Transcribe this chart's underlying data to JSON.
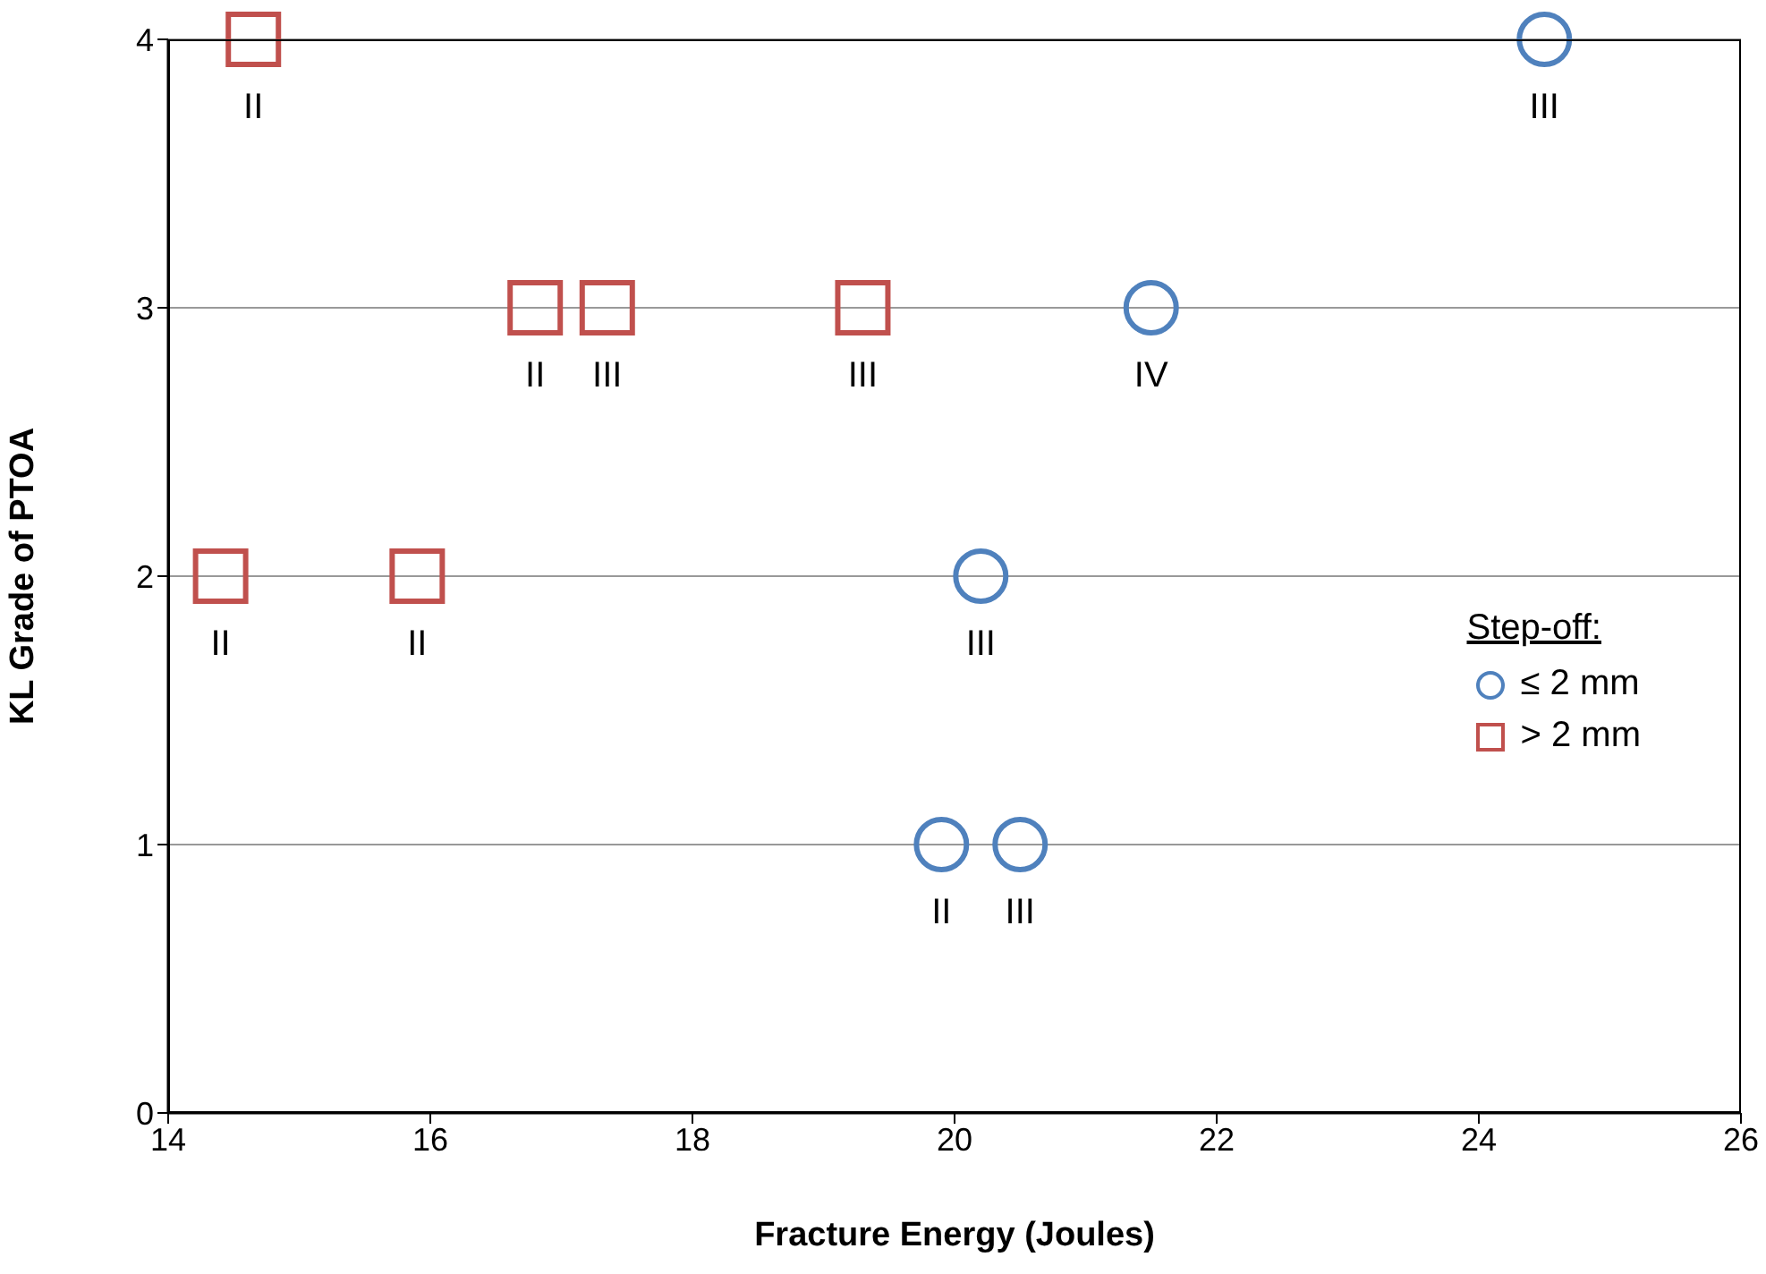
{
  "chart_data": {
    "type": "scatter",
    "xlabel": "Fracture Energy (Joules)",
    "ylabel": "KL Grade of PTOA",
    "legend_title": "Step-off:",
    "legend": "right",
    "grid": "y",
    "xlim": [
      14,
      26
    ],
    "xticks": [
      14,
      16,
      18,
      20,
      22,
      24,
      26
    ],
    "ylim": [
      0,
      4
    ],
    "yticks": [
      0,
      1,
      2,
      3,
      4
    ],
    "series": [
      {
        "name": "≤ 2 mm",
        "color": "#4f81bd",
        "marker": "circle",
        "x": [
          24.5,
          21.5,
          20.2,
          19.9,
          20.5
        ],
        "values": [
          4,
          3,
          2,
          1,
          1
        ]
      },
      {
        "name": "> 2 mm",
        "color": "#c0504d",
        "marker": "square",
        "x": [
          14.65,
          16.8,
          17.35,
          19.3,
          14.4,
          15.9
        ],
        "values": [
          4,
          3,
          3,
          3,
          2,
          2
        ]
      }
    ],
    "annotations": [
      {
        "text": "III",
        "x": 24.5,
        "y": 4
      },
      {
        "text": "IV",
        "x": 21.5,
        "y": 3
      },
      {
        "text": "III",
        "x": 20.2,
        "y": 2
      },
      {
        "text": "II",
        "x": 19.9,
        "y": 1
      },
      {
        "text": "III",
        "x": 20.5,
        "y": 1
      },
      {
        "text": "II",
        "x": 14.65,
        "y": 4
      },
      {
        "text": "II",
        "x": 16.8,
        "y": 3
      },
      {
        "text": "III",
        "x": 17.35,
        "y": 3
      },
      {
        "text": "III",
        "x": 19.3,
        "y": 3
      },
      {
        "text": "II",
        "x": 14.4,
        "y": 2
      },
      {
        "text": "II",
        "x": 15.9,
        "y": 2
      }
    ]
  }
}
